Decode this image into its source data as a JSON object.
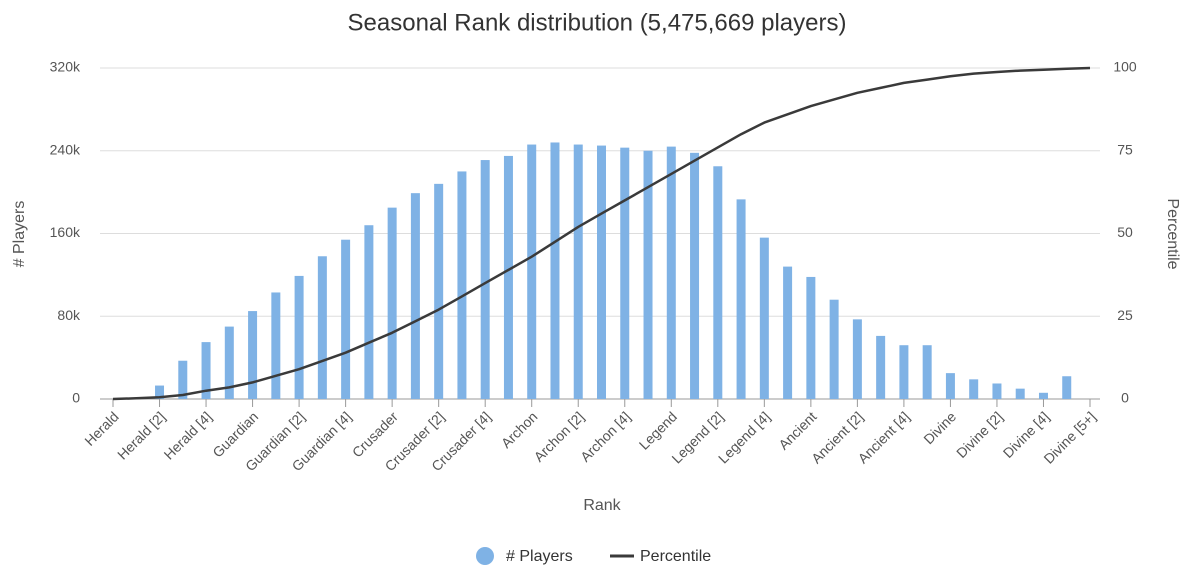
{
  "chart_data": {
    "type": "bar",
    "title": "Seasonal Rank distribution (5,475,669 players)",
    "x_label": "Rank",
    "y_label": "# Players",
    "y2_label": "Percentile",
    "categories": [
      "Herald",
      null,
      "Herald [2]",
      null,
      "Herald [4]",
      null,
      "Guardian",
      null,
      "Guardian [2]",
      null,
      "Guardian [4]",
      null,
      "Crusader",
      null,
      "Crusader [2]",
      null,
      "Crusader [4]",
      null,
      "Archon",
      null,
      "Archon [2]",
      null,
      "Archon [4]",
      null,
      "Legend",
      null,
      "Legend [2]",
      null,
      "Legend [4]",
      null,
      "Ancient",
      null,
      "Ancient [2]",
      null,
      "Ancient [4]",
      null,
      "Divine",
      null,
      "Divine [2]",
      null,
      "Divine [4]",
      null,
      "Divine [5+]"
    ],
    "series": [
      {
        "name": "# Players",
        "type": "bar",
        "color": "#7fb2e5",
        "values": [
          null,
          null,
          13000,
          37000,
          55000,
          70000,
          85000,
          103000,
          119000,
          138000,
          154000,
          168000,
          185000,
          199000,
          208000,
          220000,
          231000,
          235000,
          246000,
          248000,
          246000,
          245000,
          243000,
          240000,
          244000,
          238000,
          225000,
          193000,
          156000,
          128000,
          118000,
          96000,
          77000,
          61000,
          52000,
          52000,
          25000,
          19000,
          15000,
          10000,
          6000,
          22000,
          null
        ]
      },
      {
        "name": "Percentile",
        "type": "line",
        "axis": "y2",
        "color": "#3a3a3a",
        "values": [
          0,
          0.2,
          0.5,
          1.2,
          2.5,
          3.5,
          5,
          7,
          9,
          11.5,
          14,
          17,
          20,
          23.5,
          27,
          31,
          35,
          39,
          43,
          47.5,
          52,
          56,
          60,
          64,
          68,
          72,
          76,
          80,
          83.5,
          86,
          88.5,
          90.5,
          92.5,
          94,
          95.5,
          96.5,
          97.5,
          98.3,
          98.8,
          99.2,
          99.5,
          99.8,
          100
        ]
      }
    ],
    "ylim": [
      0,
      320000
    ],
    "yticks": [
      {
        "value": 0,
        "label": "0"
      },
      {
        "value": 80000,
        "label": "80k"
      },
      {
        "value": 160000,
        "label": "160k"
      },
      {
        "value": 240000,
        "label": "240k"
      },
      {
        "value": 320000,
        "label": "320k"
      }
    ],
    "y2lim": [
      0,
      100
    ],
    "y2ticks": [
      0,
      25,
      50,
      75,
      100
    ],
    "grid": true,
    "legend": "bottom"
  }
}
